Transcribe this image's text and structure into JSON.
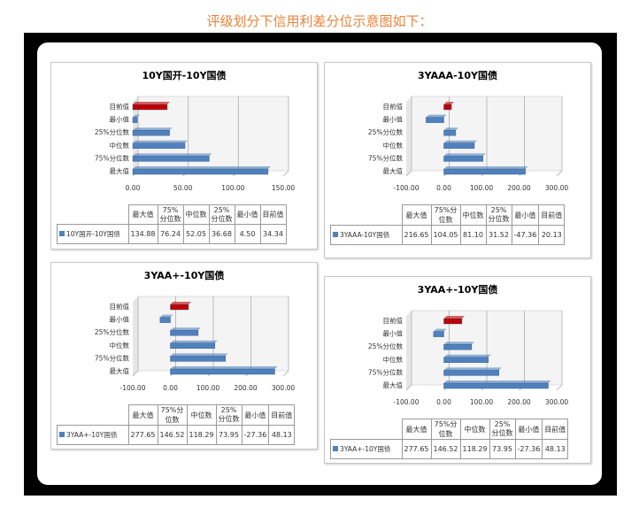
{
  "heading": "评级划分下信用利差分位示意图如下：",
  "colors": {
    "bar": "#4f81bd",
    "current": "#c00000",
    "heading": "#e8833a"
  },
  "table_headers": [
    "最大值",
    "75%分位数",
    "中位数",
    "25%分位数",
    "最小值",
    "目前值"
  ],
  "chart_data": [
    {
      "type": "bar",
      "title": "10Y国开-10Y国债",
      "series_name": "10Y国开-10Y国债",
      "categories": [
        "目前值",
        "最小值",
        "25%分位数",
        "中位数",
        "75%分位数",
        "最大值"
      ],
      "values": [
        34.34,
        4.5,
        36.68,
        52.05,
        76.24,
        134.88
      ],
      "xlim": [
        0,
        150
      ],
      "ticks": [
        "0.00",
        "50.00",
        "100.00",
        "150.00"
      ],
      "table_values": [
        "134.88",
        "76.24",
        "52.05",
        "36.68",
        "4.50",
        "34.34"
      ]
    },
    {
      "type": "bar",
      "title": "3YAAA-10Y国债",
      "series_name": "3YAAA-10Y国债",
      "categories": [
        "目前值",
        "最小值",
        "25%分位数",
        "中位数",
        "75%分位数",
        "最大值"
      ],
      "values": [
        20.13,
        -47.36,
        31.52,
        81.1,
        104.05,
        216.65
      ],
      "xlim": [
        -100,
        300
      ],
      "ticks": [
        "-100.00",
        "0.00",
        "100.00",
        "200.00",
        "300.00"
      ],
      "table_values": [
        "216.65",
        "104.05",
        "81.10",
        "31.52",
        "-47.36",
        "20.13"
      ]
    },
    {
      "type": "bar",
      "title": "3YAA+-10Y国债",
      "series_name": "3YAA+-10Y国债",
      "categories": [
        "目前值",
        "最小值",
        "25%分位数",
        "中位数",
        "75%分位数",
        "最大值"
      ],
      "values": [
        48.13,
        -27.36,
        73.95,
        118.29,
        146.52,
        277.65
      ],
      "xlim": [
        -100,
        300
      ],
      "ticks": [
        "-100.00",
        "0.00",
        "100.00",
        "200.00",
        "300.00"
      ],
      "table_values": [
        "277.65",
        "146.52",
        "118.29",
        "73.95",
        "-27.36",
        "48.13"
      ]
    },
    {
      "type": "bar",
      "title": "3YAA+-10Y国债",
      "series_name": "3YAA+-10Y国债",
      "categories": [
        "目前值",
        "最小值",
        "25%分位数",
        "中位数",
        "75%分位数",
        "最大值"
      ],
      "values": [
        48.13,
        -27.36,
        73.95,
        118.29,
        146.52,
        277.65
      ],
      "xlim": [
        -100,
        300
      ],
      "ticks": [
        "-100.00",
        "0.00",
        "100.00",
        "200.00",
        "300.00"
      ],
      "table_values": [
        "277.65",
        "146.52",
        "118.29",
        "73.95",
        "-27.36",
        "48.13"
      ]
    }
  ]
}
